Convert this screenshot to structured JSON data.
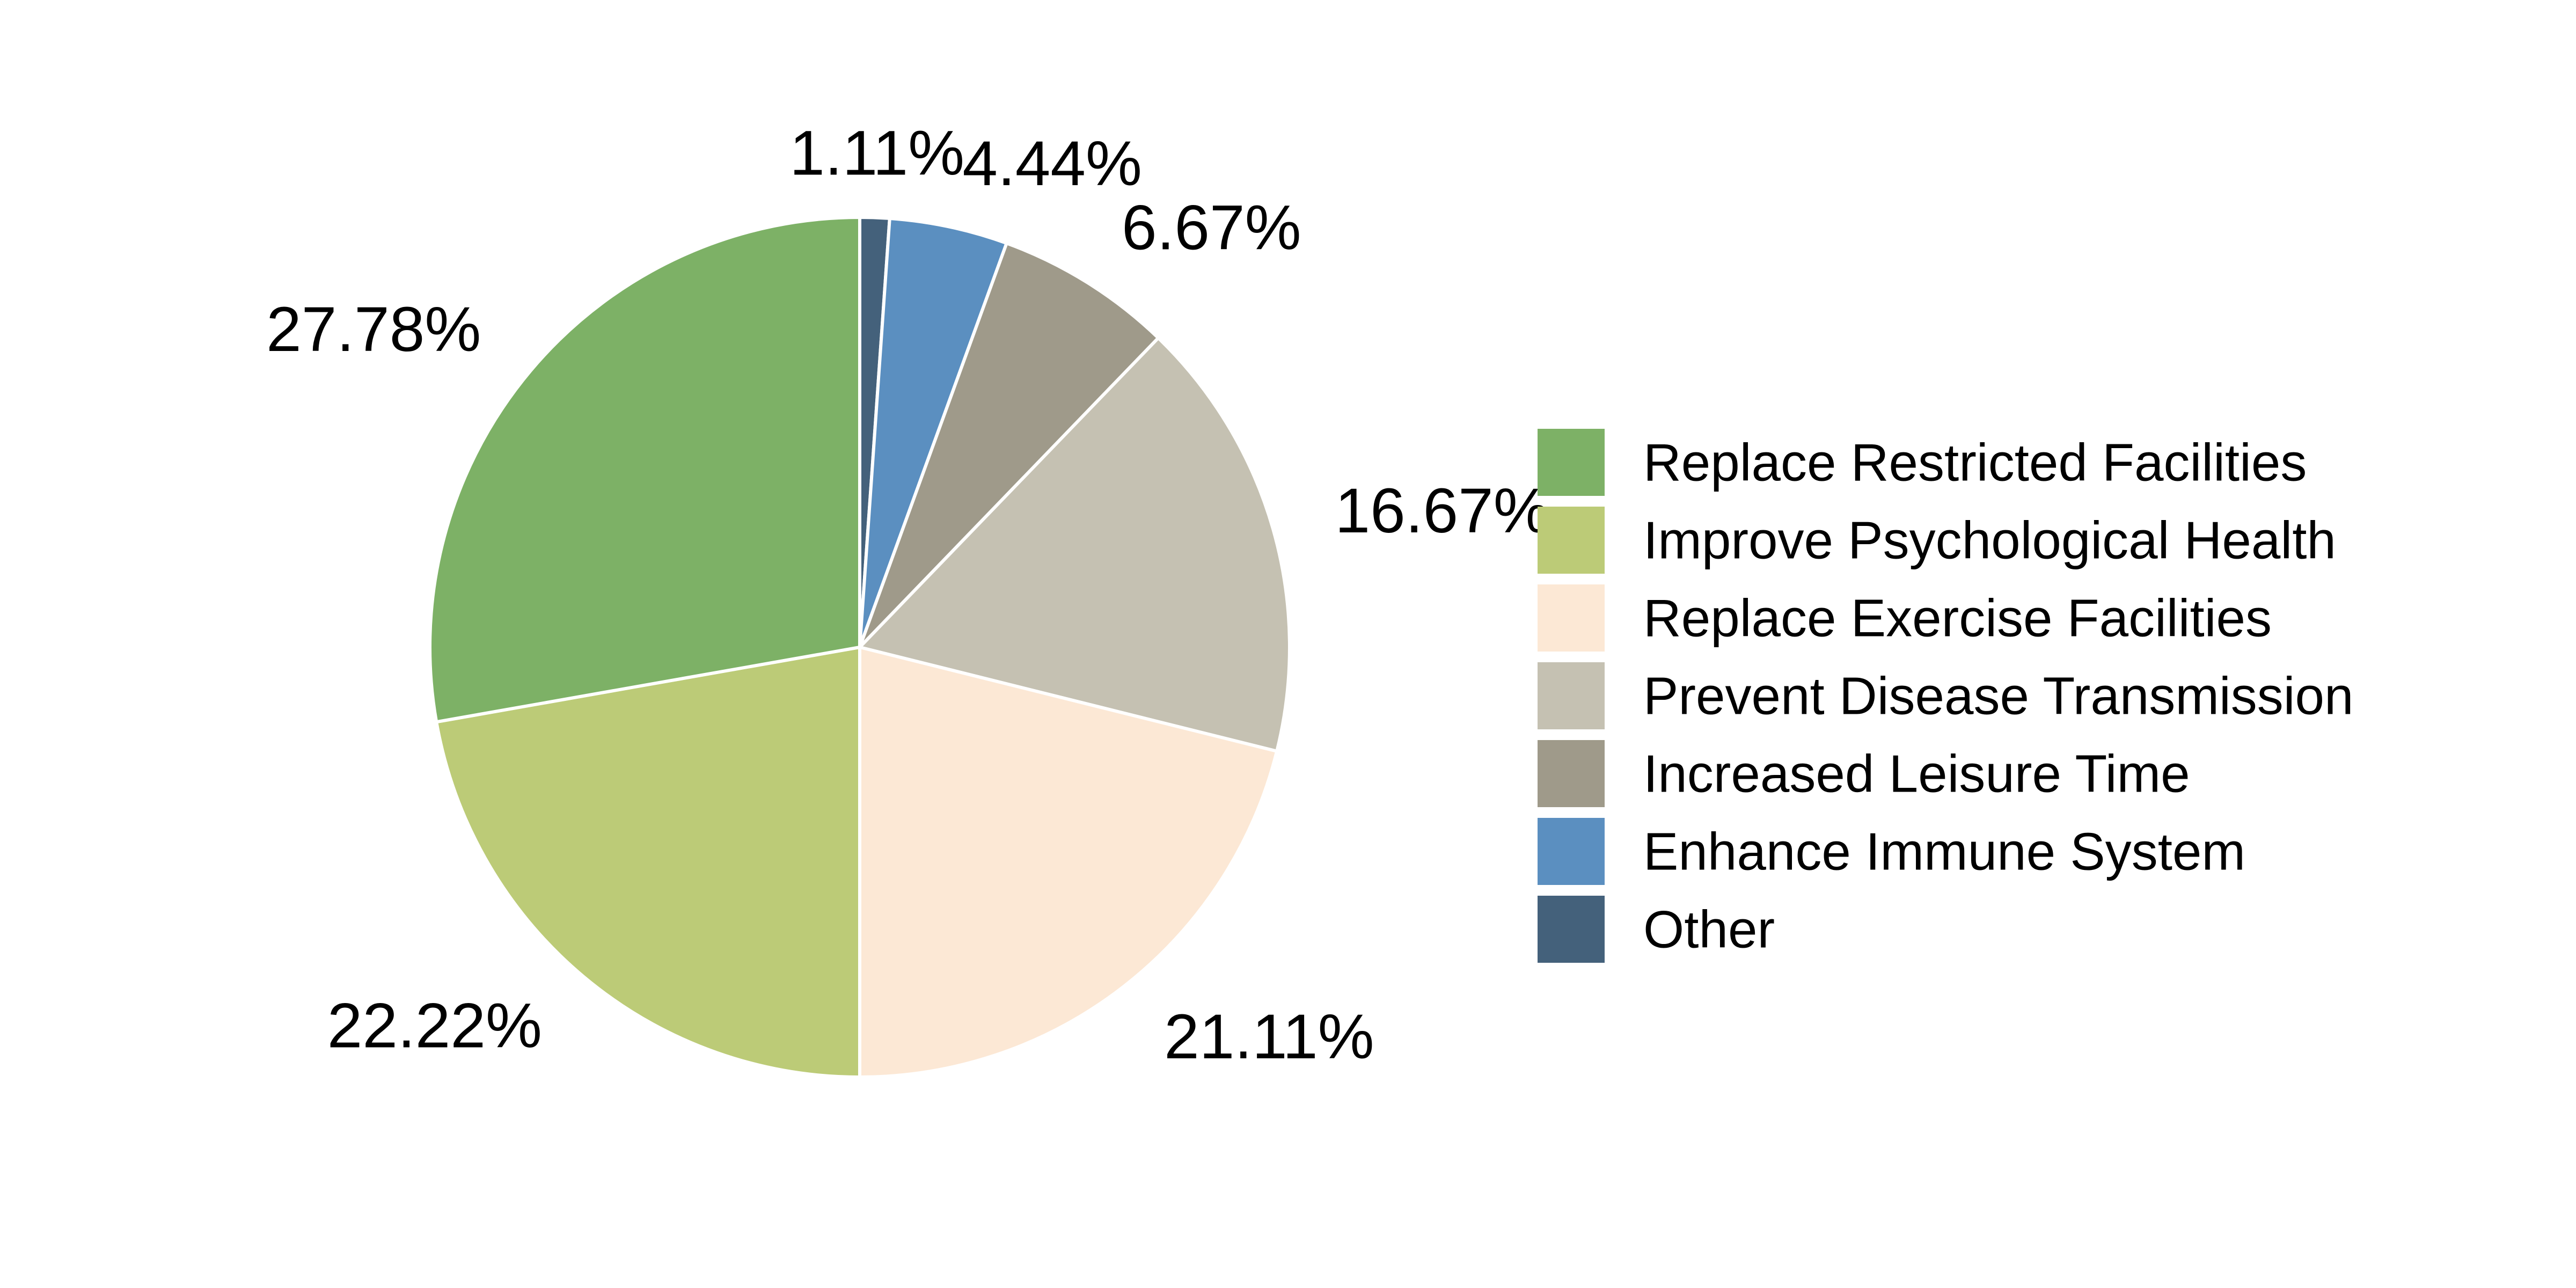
{
  "chart_data": {
    "type": "pie",
    "title": "",
    "start_angle_deg": 90,
    "direction": "clockwise",
    "legend_position": "right",
    "slices": [
      {
        "label": "Other",
        "value": 1.11,
        "display": "1.11%",
        "color": "#44617b"
      },
      {
        "label": "Enhance Immune System",
        "value": 4.44,
        "display": "4.44%",
        "color": "#5b8fc0"
      },
      {
        "label": "Increased Leisure Time",
        "value": 6.67,
        "display": "6.67%",
        "color": "#9f9a8a"
      },
      {
        "label": "Prevent Disease Transmission",
        "value": 16.67,
        "display": "16.67%",
        "color": "#c5c1b2"
      },
      {
        "label": "Replace Exercise Facilities",
        "value": 21.11,
        "display": "21.11%",
        "color": "#fce8d5"
      },
      {
        "label": "Improve Psychological Health",
        "value": 22.22,
        "display": "22.22%",
        "color": "#bccb77"
      },
      {
        "label": "Replace Restricted Facilities",
        "value": 27.78,
        "display": "27.78%",
        "color": "#7db166"
      }
    ],
    "legend_order": [
      "Replace Restricted Facilities",
      "Improve Psychological Health",
      "Replace Exercise Facilities",
      "Prevent Disease Transmission",
      "Increased Leisure Time",
      "Enhance Immune System",
      "Other"
    ]
  }
}
